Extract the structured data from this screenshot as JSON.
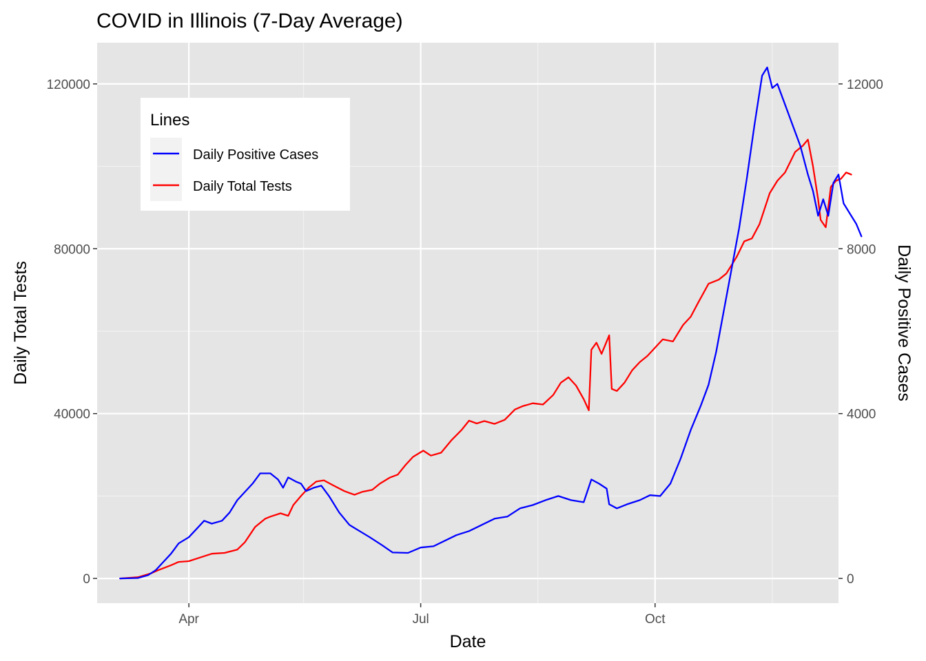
{
  "chart_data": {
    "type": "line",
    "title": "COVID in Illinois (7-Day Average)",
    "xlabel": "Date",
    "ylabel_left": "Daily Total Tests",
    "ylabel_right": "Daily Positive Cases",
    "x_ticks": [
      {
        "label": "Apr",
        "date": "2020-04-01"
      },
      {
        "label": "Jul",
        "date": "2020-07-01"
      },
      {
        "label": "Oct",
        "date": "2020-10-01"
      }
    ],
    "x_minor_dates": [
      "2020-05-16",
      "2020-08-16",
      "2020-11-16"
    ],
    "xlim": [
      "2020-02-25",
      "2020-12-12"
    ],
    "y_left_ticks": [
      0,
      40000,
      80000,
      120000
    ],
    "y_left_lim": [
      -6000,
      130000
    ],
    "y_right_ticks": [
      0,
      4000,
      8000,
      12000
    ],
    "y_right_lim": [
      -600,
      13000
    ],
    "grid": true,
    "legend": {
      "title": "Lines",
      "position": "top-left",
      "entries": [
        {
          "label": "Daily Positive Cases",
          "color": "#0000ff"
        },
        {
          "label": "Daily Total Tests",
          "color": "#ff0000"
        }
      ]
    },
    "series": [
      {
        "name": "Daily Total Tests",
        "axis": "left",
        "color": "#ff0000",
        "points": [
          [
            "2020-03-05",
            0
          ],
          [
            "2020-03-12",
            300
          ],
          [
            "2020-03-17",
            1200
          ],
          [
            "2020-03-20",
            2000
          ],
          [
            "2020-03-25",
            3200
          ],
          [
            "2020-03-28",
            4000
          ],
          [
            "2020-04-01",
            4200
          ],
          [
            "2020-04-05",
            5000
          ],
          [
            "2020-04-10",
            6000
          ],
          [
            "2020-04-15",
            6200
          ],
          [
            "2020-04-20",
            7000
          ],
          [
            "2020-04-23",
            8800
          ],
          [
            "2020-04-27",
            12500
          ],
          [
            "2020-05-01",
            14500
          ],
          [
            "2020-05-03",
            15000
          ],
          [
            "2020-05-07",
            15800
          ],
          [
            "2020-05-10",
            15200
          ],
          [
            "2020-05-12",
            17800
          ],
          [
            "2020-05-15",
            20000
          ],
          [
            "2020-05-18",
            22000
          ],
          [
            "2020-05-21",
            23500
          ],
          [
            "2020-05-24",
            23800
          ],
          [
            "2020-05-27",
            22800
          ],
          [
            "2020-06-01",
            21200
          ],
          [
            "2020-06-05",
            20300
          ],
          [
            "2020-06-08",
            21000
          ],
          [
            "2020-06-12",
            21500
          ],
          [
            "2020-06-15",
            23000
          ],
          [
            "2020-06-19",
            24500
          ],
          [
            "2020-06-22",
            25200
          ],
          [
            "2020-06-25",
            27500
          ],
          [
            "2020-06-28",
            29500
          ],
          [
            "2020-07-02",
            31000
          ],
          [
            "2020-07-05",
            29800
          ],
          [
            "2020-07-09",
            30500
          ],
          [
            "2020-07-13",
            33500
          ],
          [
            "2020-07-17",
            36000
          ],
          [
            "2020-07-20",
            38300
          ],
          [
            "2020-07-23",
            37600
          ],
          [
            "2020-07-26",
            38200
          ],
          [
            "2020-07-30",
            37500
          ],
          [
            "2020-08-03",
            38500
          ],
          [
            "2020-08-07",
            41000
          ],
          [
            "2020-08-10",
            41800
          ],
          [
            "2020-08-14",
            42500
          ],
          [
            "2020-08-18",
            42200
          ],
          [
            "2020-08-22",
            44500
          ],
          [
            "2020-08-25",
            47500
          ],
          [
            "2020-08-28",
            48800
          ],
          [
            "2020-08-31",
            46800
          ],
          [
            "2020-09-03",
            43500
          ],
          [
            "2020-09-05",
            40800
          ],
          [
            "2020-09-06",
            55500
          ],
          [
            "2020-09-08",
            57200
          ],
          [
            "2020-09-10",
            54500
          ],
          [
            "2020-09-13",
            59000
          ],
          [
            "2020-09-14",
            46000
          ],
          [
            "2020-09-16",
            45500
          ],
          [
            "2020-09-19",
            47500
          ],
          [
            "2020-09-22",
            50500
          ],
          [
            "2020-09-25",
            52500
          ],
          [
            "2020-09-28",
            54000
          ],
          [
            "2020-10-01",
            56000
          ],
          [
            "2020-10-04",
            58000
          ],
          [
            "2020-10-08",
            57500
          ],
          [
            "2020-10-12",
            61500
          ],
          [
            "2020-10-15",
            63500
          ],
          [
            "2020-10-18",
            67000
          ],
          [
            "2020-10-22",
            71500
          ],
          [
            "2020-10-26",
            72500
          ],
          [
            "2020-10-29",
            74000
          ],
          [
            "2020-11-02",
            78000
          ],
          [
            "2020-11-05",
            81800
          ],
          [
            "2020-11-08",
            82500
          ],
          [
            "2020-11-11",
            86000
          ],
          [
            "2020-11-15",
            93500
          ],
          [
            "2020-11-18",
            96500
          ],
          [
            "2020-11-21",
            98500
          ],
          [
            "2020-11-25",
            103500
          ],
          [
            "2020-11-28",
            105000
          ],
          [
            "2020-11-30",
            106500
          ],
          [
            "2020-12-02",
            100000
          ],
          [
            "2020-12-04",
            92000
          ],
          [
            "2020-12-05",
            87000
          ],
          [
            "2020-12-07",
            85200
          ],
          [
            "2020-12-09",
            95000
          ],
          [
            "2020-12-11",
            96500
          ],
          [
            "2020-12-13",
            97000
          ],
          [
            "2020-12-15",
            98500
          ],
          [
            "2020-12-17",
            98000
          ]
        ]
      },
      {
        "name": "Daily Positive Cases",
        "axis": "right",
        "color": "#0000ff",
        "points": [
          [
            "2020-03-05",
            0
          ],
          [
            "2020-03-12",
            10
          ],
          [
            "2020-03-16",
            80
          ],
          [
            "2020-03-19",
            200
          ],
          [
            "2020-03-22",
            400
          ],
          [
            "2020-03-25",
            600
          ],
          [
            "2020-03-28",
            850
          ],
          [
            "2020-04-01",
            1000
          ],
          [
            "2020-04-04",
            1200
          ],
          [
            "2020-04-07",
            1400
          ],
          [
            "2020-04-10",
            1330
          ],
          [
            "2020-04-14",
            1400
          ],
          [
            "2020-04-17",
            1600
          ],
          [
            "2020-04-20",
            1900
          ],
          [
            "2020-04-23",
            2100
          ],
          [
            "2020-04-26",
            2300
          ],
          [
            "2020-04-29",
            2550
          ],
          [
            "2020-05-03",
            2550
          ],
          [
            "2020-05-06",
            2400
          ],
          [
            "2020-05-08",
            2200
          ],
          [
            "2020-05-10",
            2450
          ],
          [
            "2020-05-13",
            2350
          ],
          [
            "2020-05-15",
            2300
          ],
          [
            "2020-05-17",
            2120
          ],
          [
            "2020-05-20",
            2200
          ],
          [
            "2020-05-23",
            2250
          ],
          [
            "2020-05-26",
            2000
          ],
          [
            "2020-05-30",
            1600
          ],
          [
            "2020-06-03",
            1300
          ],
          [
            "2020-06-07",
            1150
          ],
          [
            "2020-06-11",
            1000
          ],
          [
            "2020-06-16",
            800
          ],
          [
            "2020-06-20",
            630
          ],
          [
            "2020-06-26",
            620
          ],
          [
            "2020-07-01",
            750
          ],
          [
            "2020-07-06",
            780
          ],
          [
            "2020-07-10",
            900
          ],
          [
            "2020-07-15",
            1050
          ],
          [
            "2020-07-20",
            1150
          ],
          [
            "2020-07-25",
            1300
          ],
          [
            "2020-07-30",
            1450
          ],
          [
            "2020-08-04",
            1500
          ],
          [
            "2020-08-09",
            1700
          ],
          [
            "2020-08-14",
            1780
          ],
          [
            "2020-08-19",
            1900
          ],
          [
            "2020-08-24",
            2000
          ],
          [
            "2020-08-29",
            1900
          ],
          [
            "2020-09-03",
            1850
          ],
          [
            "2020-09-06",
            2400
          ],
          [
            "2020-09-09",
            2300
          ],
          [
            "2020-09-12",
            2180
          ],
          [
            "2020-09-13",
            1800
          ],
          [
            "2020-09-16",
            1700
          ],
          [
            "2020-09-20",
            1800
          ],
          [
            "2020-09-25",
            1900
          ],
          [
            "2020-09-29",
            2020
          ],
          [
            "2020-10-03",
            2000
          ],
          [
            "2020-10-07",
            2300
          ],
          [
            "2020-10-11",
            2900
          ],
          [
            "2020-10-15",
            3600
          ],
          [
            "2020-10-19",
            4200
          ],
          [
            "2020-10-22",
            4700
          ],
          [
            "2020-10-25",
            5500
          ],
          [
            "2020-10-28",
            6500
          ],
          [
            "2020-10-31",
            7500
          ],
          [
            "2020-11-03",
            8500
          ],
          [
            "2020-11-06",
            9700
          ],
          [
            "2020-11-09",
            11000
          ],
          [
            "2020-11-12",
            12200
          ],
          [
            "2020-11-14",
            12400
          ],
          [
            "2020-11-16",
            11900
          ],
          [
            "2020-11-18",
            12000
          ],
          [
            "2020-11-21",
            11500
          ],
          [
            "2020-11-24",
            11000
          ],
          [
            "2020-11-27",
            10500
          ],
          [
            "2020-11-30",
            9800
          ],
          [
            "2020-12-02",
            9400
          ],
          [
            "2020-12-04",
            8800
          ],
          [
            "2020-12-06",
            9200
          ],
          [
            "2020-12-08",
            8800
          ],
          [
            "2020-12-10",
            9600
          ],
          [
            "2020-12-12",
            9800
          ],
          [
            "2020-12-14",
            9100
          ],
          [
            "2020-12-17",
            8800
          ],
          [
            "2020-12-19",
            8600
          ],
          [
            "2020-12-21",
            8300
          ]
        ]
      }
    ]
  }
}
